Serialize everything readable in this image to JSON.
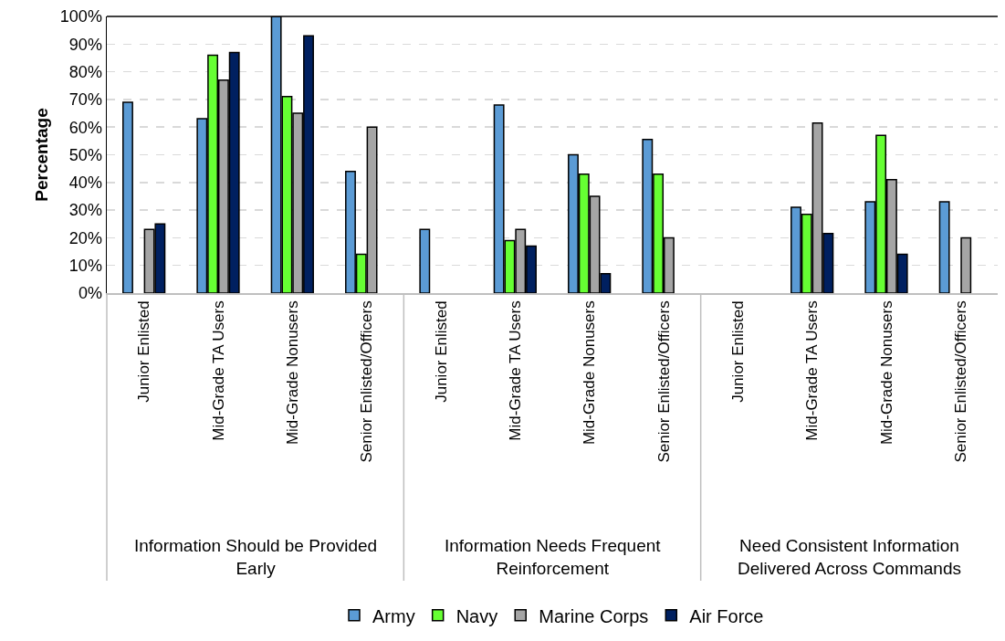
{
  "chart_data": {
    "type": "bar",
    "ylabel": "Percentage",
    "categories": [
      "Junior Enlisted",
      "Mid-Grade TA Users",
      "Mid-Grade Nonusers",
      "Senior Enlisted/Officers",
      "Junior Enlisted",
      "Mid-Grade TA Users",
      "Mid-Grade Nonusers",
      "Senior Enlisted/Officers",
      "Junior Enlisted",
      "Mid-Grade TA Users",
      "Mid-Grade Nonusers",
      "Senior Enlisted/Officers"
    ],
    "annotations": [
      "Information Should be Provided\nEarly",
      "Information Needs Frequent\nReinforcement",
      "Need Consistent Information\nDelivered Across Commands"
    ],
    "series": [
      {
        "name": "Army",
        "color": "#5b9bd5",
        "values": [
          69,
          63,
          100,
          44,
          23,
          68,
          50,
          55.5,
          null,
          31,
          33,
          33
        ]
      },
      {
        "name": "Navy",
        "color": "#66ff33",
        "values": [
          null,
          86,
          71,
          14,
          null,
          19,
          43,
          43,
          null,
          28.5,
          57,
          null
        ]
      },
      {
        "name": "Marine Corps",
        "color": "#a5a5a5",
        "values": [
          23,
          77,
          65,
          60,
          null,
          23,
          35,
          20,
          null,
          61.5,
          41,
          20
        ]
      },
      {
        "name": "Air Force",
        "color": "#002060",
        "values": [
          25,
          87,
          93,
          null,
          null,
          17,
          7,
          null,
          null,
          21.5,
          14,
          null
        ]
      }
    ],
    "ylim": [
      0,
      100
    ],
    "yticks": [
      {
        "value": 0,
        "label": "0%"
      },
      {
        "value": 10,
        "label": "10%"
      },
      {
        "value": 20,
        "label": "20%"
      },
      {
        "value": 30,
        "label": "30%"
      },
      {
        "value": 40,
        "label": "40%"
      },
      {
        "value": 50,
        "label": "50%"
      },
      {
        "value": 60,
        "label": "60%"
      },
      {
        "value": 70,
        "label": "70%"
      },
      {
        "value": 80,
        "label": "80%"
      },
      {
        "value": 90,
        "label": "90%"
      },
      {
        "value": 100,
        "label": "100%"
      }
    ],
    "grid": "y",
    "legend": "bottom"
  }
}
